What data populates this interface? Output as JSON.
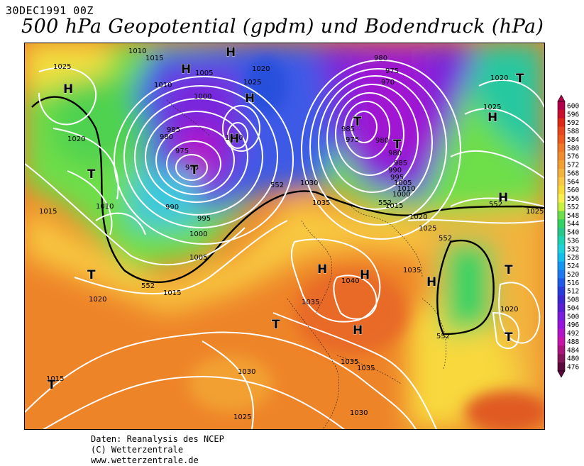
{
  "header": {
    "date": "30DEC1991 00Z",
    "title": "500 hPa Geopotential (gpdm) und Bodendruck (hPa)"
  },
  "footer": {
    "line1": "Daten: Reanalysis des NCEP",
    "line2": "(C) Wetterzentrale",
    "line3": "www.wetterzentrale.de"
  },
  "legend": {
    "labels": [
      "600",
      "596",
      "592",
      "588",
      "584",
      "580",
      "576",
      "572",
      "568",
      "564",
      "560",
      "556",
      "552",
      "548",
      "544",
      "540",
      "536",
      "532",
      "528",
      "524",
      "520",
      "516",
      "512",
      "508",
      "504",
      "500",
      "496",
      "492",
      "488",
      "484",
      "480",
      "476"
    ],
    "colors": [
      "#b4004a",
      "#c8102e",
      "#dc2814",
      "#e8461e",
      "#ee5a1e",
      "#ee7828",
      "#f08c2e",
      "#f2a032",
      "#f2b43c",
      "#f8c846",
      "#f8dc3c",
      "#f8f050",
      "#c8f040",
      "#6ede4a",
      "#32d264",
      "#28c88c",
      "#1ed2b4",
      "#1ed2dc",
      "#14beec",
      "#1496f0",
      "#1e78f0",
      "#1e5ae6",
      "#283cdc",
      "#3c28d2",
      "#5a1ed2",
      "#781edc",
      "#9614dc",
      "#b414c8",
      "#c814aa",
      "#aa147c",
      "#82145a",
      "#5a0a3c"
    ]
  },
  "map": {
    "contour_labels": [
      "1025",
      "1020",
      "1015",
      "1010",
      "1005",
      "1000",
      "995",
      "990",
      "985",
      "980",
      "975",
      "970",
      "1030",
      "1035",
      "1040",
      "552"
    ],
    "centers": [
      "H",
      "T"
    ]
  }
}
